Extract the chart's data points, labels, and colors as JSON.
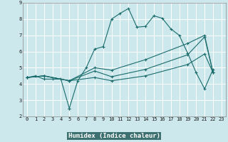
{
  "title": "",
  "xlabel": "Humidex (Indice chaleur)",
  "bg_color": "#cce8ec",
  "plot_bg_color": "#cce8ec",
  "line_color": "#1a6b6b",
  "grid_color": "#ffffff",
  "xlabel_bg": "#4a7a7a",
  "xlabel_fg": "#ffffff",
  "xlim": [
    -0.5,
    23.5
  ],
  "ylim": [
    2,
    9
  ],
  "xticks": [
    0,
    1,
    2,
    3,
    4,
    5,
    6,
    7,
    8,
    9,
    10,
    11,
    12,
    13,
    14,
    15,
    16,
    17,
    18,
    19,
    20,
    21,
    22,
    23
  ],
  "yticks": [
    2,
    3,
    4,
    5,
    6,
    7,
    8,
    9
  ],
  "lines": [
    {
      "x": [
        0,
        1,
        2,
        3,
        4,
        5,
        5,
        6,
        7,
        8,
        9,
        10,
        11,
        12,
        13,
        14,
        15,
        16,
        17,
        18,
        19,
        20,
        21,
        22
      ],
      "y": [
        4.4,
        4.5,
        4.3,
        4.3,
        4.3,
        2.5,
        2.5,
        4.2,
        5.0,
        6.15,
        6.3,
        8.0,
        8.35,
        8.65,
        7.5,
        7.55,
        8.2,
        8.05,
        7.4,
        7.0,
        5.9,
        4.7,
        3.7,
        4.9
      ]
    },
    {
      "x": [
        0,
        2,
        5,
        8,
        10,
        14,
        19,
        21,
        22
      ],
      "y": [
        4.4,
        4.5,
        4.2,
        5.0,
        4.85,
        5.5,
        6.5,
        7.0,
        4.7
      ]
    },
    {
      "x": [
        0,
        2,
        5,
        8,
        10,
        14,
        19,
        21,
        22
      ],
      "y": [
        4.4,
        4.5,
        4.2,
        4.8,
        4.45,
        4.9,
        5.8,
        6.9,
        4.7
      ]
    },
    {
      "x": [
        0,
        2,
        5,
        8,
        10,
        14,
        19,
        21,
        22
      ],
      "y": [
        4.4,
        4.5,
        4.2,
        4.4,
        4.2,
        4.5,
        5.2,
        5.85,
        4.7
      ]
    }
  ]
}
